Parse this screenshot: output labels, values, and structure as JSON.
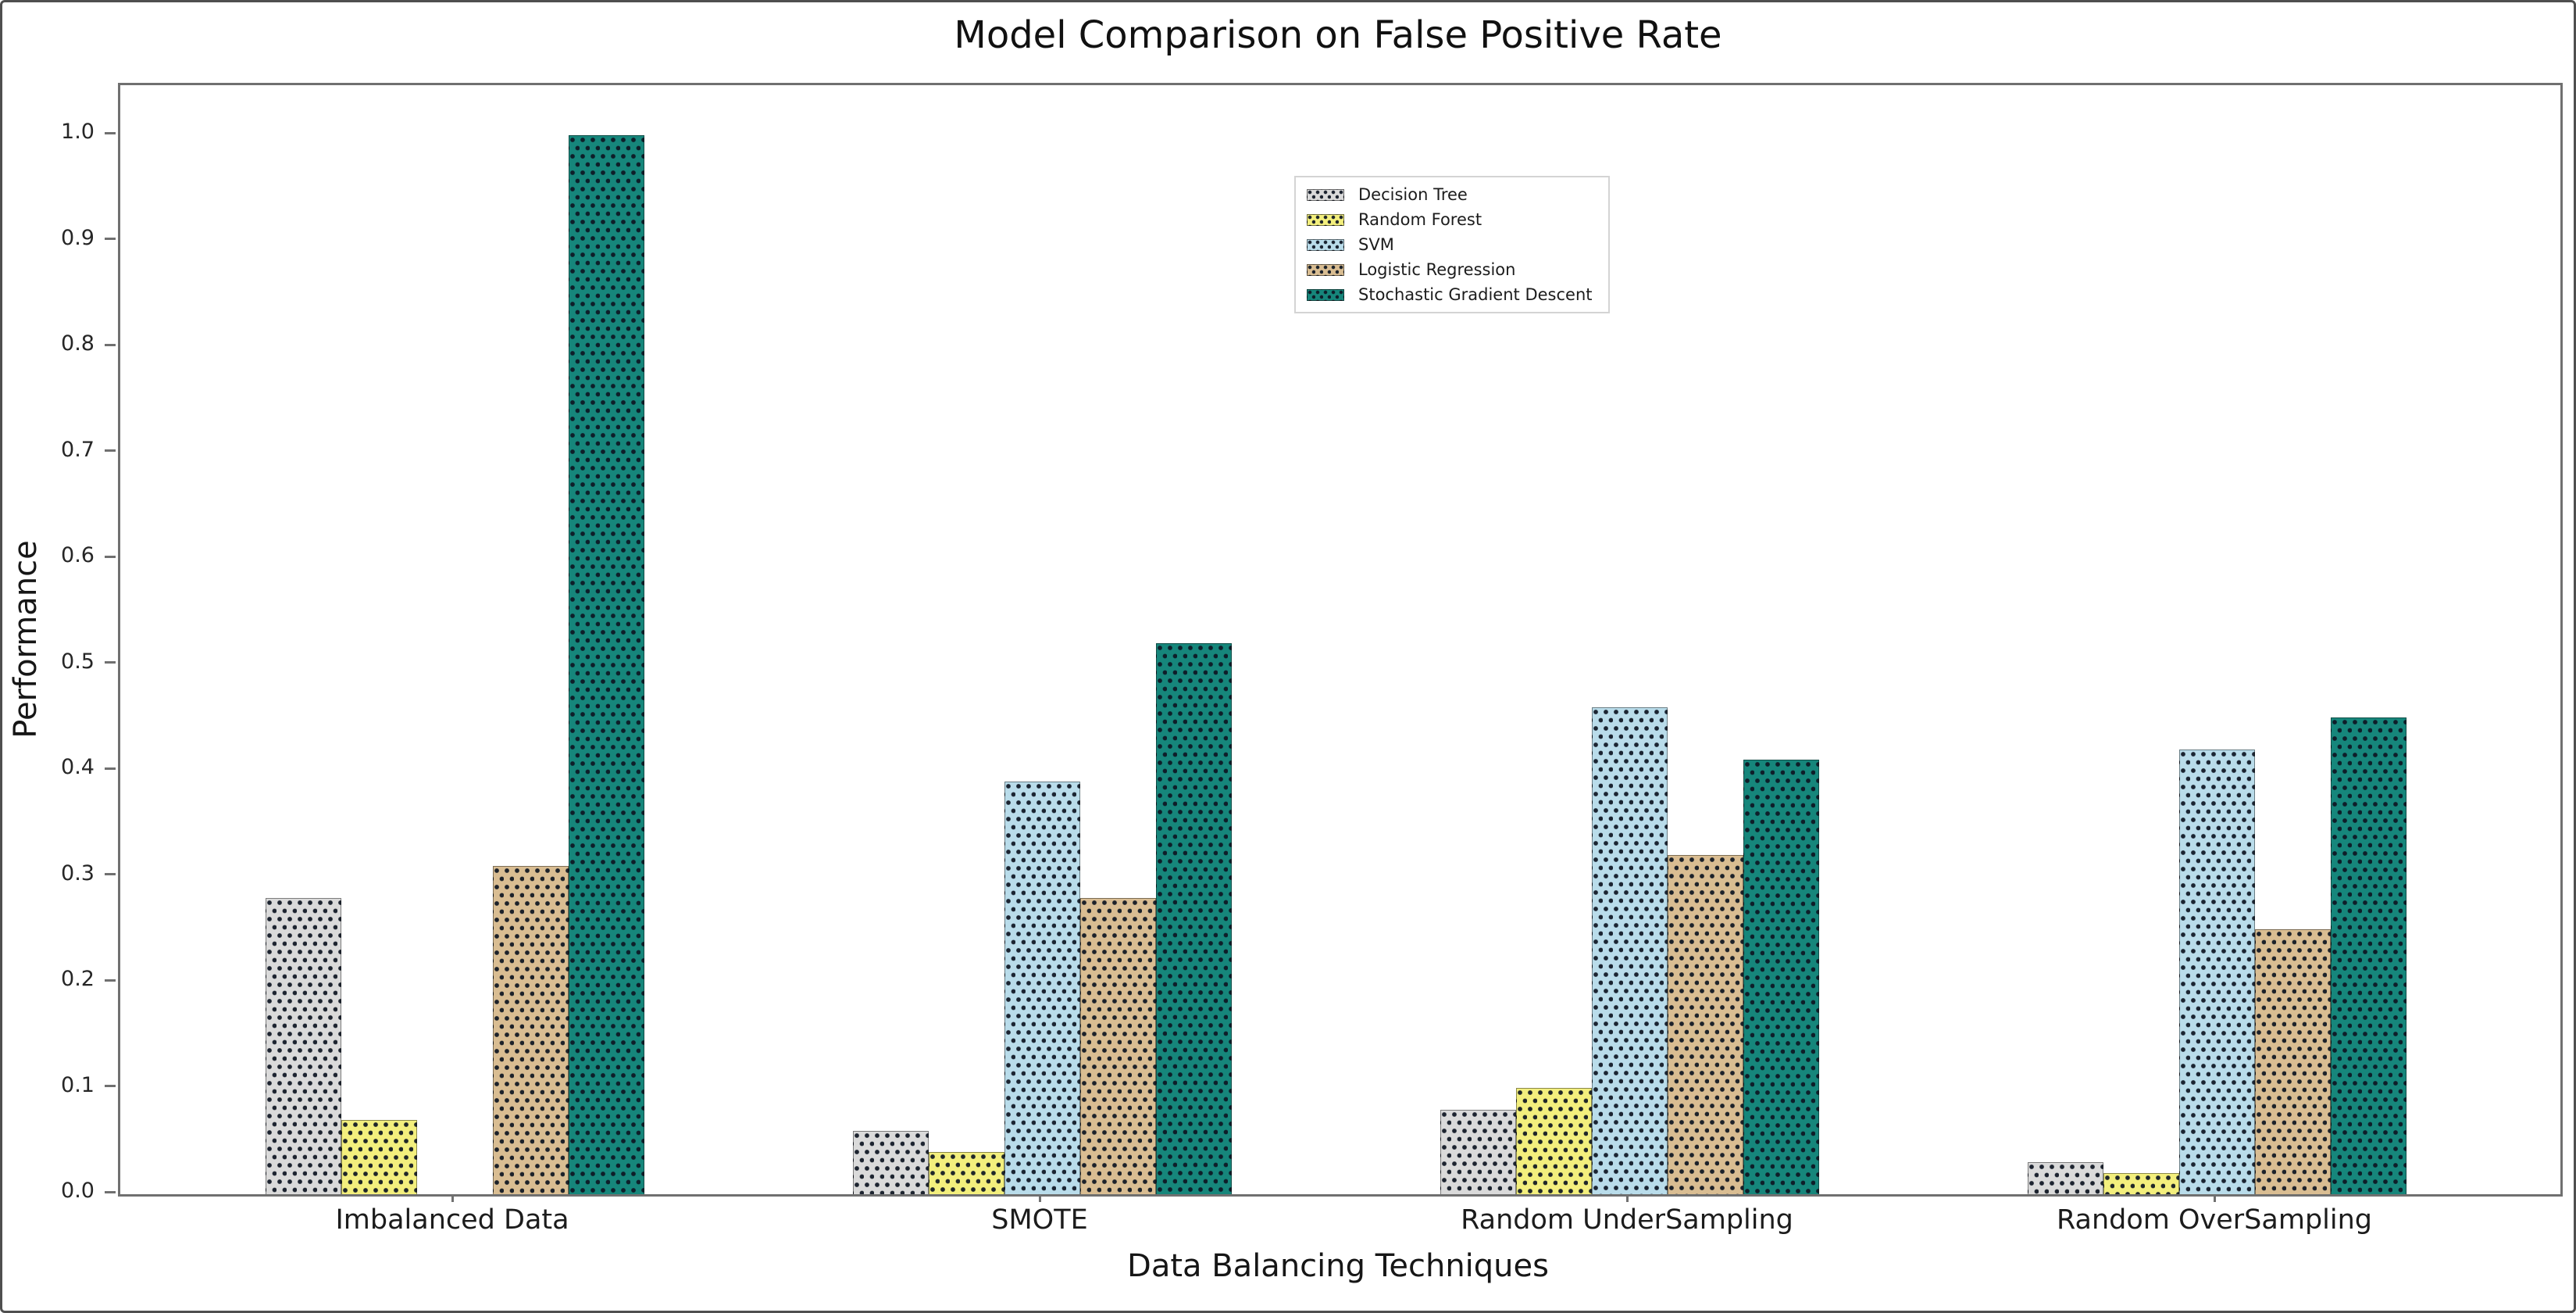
{
  "chart_data": {
    "type": "bar",
    "title": "Model Comparison on False Positive Rate",
    "xlabel": "Data Balancing Techniques",
    "ylabel": "Performance",
    "categories": [
      "Imbalanced Data",
      "SMOTE",
      "Random UnderSampling",
      "Random OverSampling"
    ],
    "series": [
      {
        "name": "Decision Tree",
        "color": "#dadada",
        "values": [
          0.28,
          0.06,
          0.08,
          0.03
        ]
      },
      {
        "name": "Random Forest",
        "color": "#f3ef7d",
        "values": [
          0.07,
          0.04,
          0.1,
          0.02
        ]
      },
      {
        "name": "SVM",
        "color": "#b9dcea",
        "values": [
          0.0,
          0.39,
          0.46,
          0.42
        ]
      },
      {
        "name": "Logistic Regression",
        "color": "#d9bd92",
        "values": [
          0.31,
          0.28,
          0.32,
          0.25
        ]
      },
      {
        "name": "Stochastic Gradient Descent",
        "color": "#16867b",
        "values": [
          1.0,
          0.52,
          0.41,
          0.45
        ]
      }
    ],
    "yticks": [
      "0.0",
      "0.1",
      "0.2",
      "0.3",
      "0.4",
      "0.5",
      "0.6",
      "0.7",
      "0.8",
      "0.9",
      "1.0"
    ],
    "ylim": [
      0,
      1.047
    ],
    "grid": false,
    "hatch": "dots",
    "legend_position": "upper center",
    "bar_edge_visible": true
  }
}
